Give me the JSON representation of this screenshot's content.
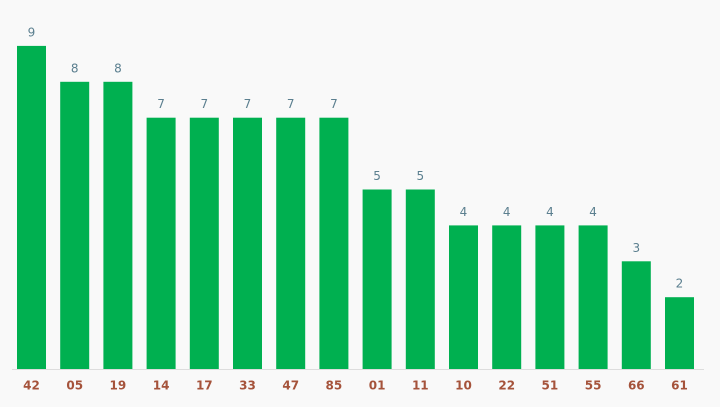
{
  "chart_data": {
    "type": "bar",
    "categories": [
      "42",
      "05",
      "19",
      "14",
      "17",
      "33",
      "47",
      "85",
      "01",
      "11",
      "10",
      "22",
      "51",
      "55",
      "66",
      "61"
    ],
    "values": [
      9,
      8,
      8,
      7,
      7,
      7,
      7,
      7,
      5,
      5,
      4,
      4,
      4,
      4,
      3,
      2
    ],
    "color": "#00b050"
  }
}
